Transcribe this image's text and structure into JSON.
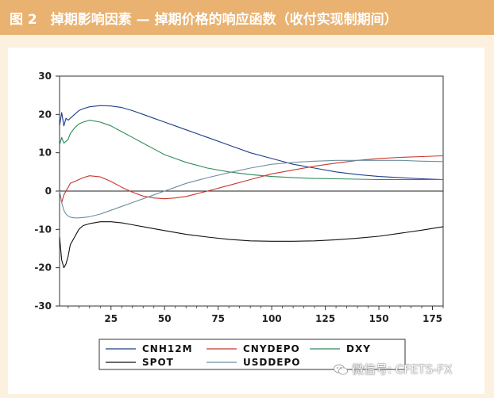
{
  "header": {
    "title": "图 2　掉期影响因素 — 掉期价格的响应函数（收付实现制期间）"
  },
  "watermark": {
    "text": "微信号: CFETS-FX",
    "icon": "wechat-icon"
  },
  "colors": {
    "title_bar": "#e9b271",
    "page_bg": "#fbf1de",
    "CNH12M": "#1f3f86",
    "CNYDEPO": "#c8372f",
    "DXY": "#2e8b5a",
    "SPOT": "#111111",
    "USDDEPO": "#6f8fa0"
  },
  "chart_data": {
    "type": "line",
    "title": "",
    "xlabel": "",
    "ylabel": "",
    "xlim": [
      1,
      180
    ],
    "ylim": [
      -30,
      30
    ],
    "x_ticks": [
      25,
      50,
      75,
      100,
      125,
      150,
      175
    ],
    "y_ticks": [
      30,
      20,
      10,
      0,
      -10,
      -20,
      -30
    ],
    "legend_position": "bottom",
    "zero_line": true,
    "x": [
      1,
      2,
      3,
      4,
      5,
      6,
      8,
      10,
      12,
      15,
      20,
      25,
      30,
      35,
      40,
      45,
      50,
      55,
      60,
      70,
      80,
      90,
      100,
      110,
      120,
      130,
      140,
      150,
      160,
      170,
      180
    ],
    "series": [
      {
        "name": "CNH12M",
        "values": [
          17,
          20.5,
          17,
          19,
          18.5,
          19,
          20,
          21,
          21.5,
          22,
          22.3,
          22.2,
          21.8,
          21,
          20,
          19,
          18,
          17,
          16,
          14,
          12,
          10,
          8.5,
          7,
          6,
          5,
          4.3,
          3.8,
          3.5,
          3.2,
          3.0
        ]
      },
      {
        "name": "CNYDEPO",
        "values": [
          0,
          -3,
          -1,
          0,
          1,
          2,
          2.5,
          3,
          3.5,
          4,
          3.7,
          2.5,
          1,
          -0.3,
          -1.3,
          -1.8,
          -2,
          -1.8,
          -1.4,
          0,
          1.5,
          3,
          4.5,
          5.5,
          6.5,
          7.3,
          8,
          8.5,
          8.8,
          9,
          9.2
        ]
      },
      {
        "name": "DXY",
        "values": [
          12,
          14,
          12.5,
          13,
          13.5,
          15,
          16.5,
          17.5,
          18,
          18.5,
          18,
          17,
          15.5,
          14,
          12.5,
          11,
          9.5,
          8.5,
          7.5,
          6,
          5,
          4.3,
          3.8,
          3.5,
          3.3,
          3.2,
          3.1,
          3.0,
          3.0,
          3.0,
          3.0
        ]
      },
      {
        "name": "SPOT",
        "values": [
          -12,
          -18,
          -20,
          -19,
          -17,
          -14,
          -12,
          -10,
          -9,
          -8.5,
          -8,
          -8,
          -8.3,
          -8.8,
          -9.3,
          -9.8,
          -10.3,
          -10.8,
          -11.3,
          -12,
          -12.6,
          -13,
          -13.1,
          -13.1,
          -13,
          -12.7,
          -12.3,
          -11.8,
          -11,
          -10.2,
          -9.3
        ]
      },
      {
        "name": "USDDEPO",
        "values": [
          0,
          -3,
          -5,
          -6,
          -6.5,
          -6.8,
          -7,
          -7,
          -6.9,
          -6.7,
          -6,
          -5,
          -4,
          -3,
          -2,
          -1,
          0,
          1,
          2,
          3.5,
          4.8,
          6,
          7,
          7.5,
          7.8,
          8,
          8,
          8,
          8,
          7.8,
          7.7
        ]
      }
    ]
  }
}
